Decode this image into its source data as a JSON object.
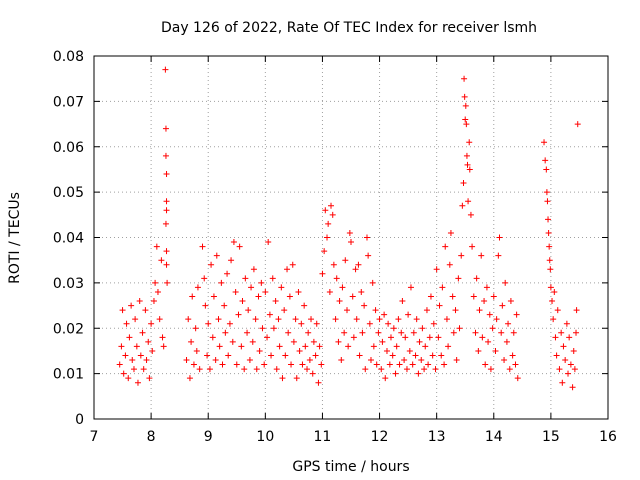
{
  "chart_data": {
    "type": "scatter",
    "title": "Day 126 of 2022, Rate Of TEC Index for receiver lsmh",
    "xlabel": "GPS time / hours",
    "ylabel": "ROTI / TECUs",
    "xlim": [
      7,
      16
    ],
    "ylim": [
      0,
      0.08
    ],
    "xticks": [
      "7",
      "8",
      "9",
      "10",
      "11",
      "12",
      "13",
      "14",
      "15",
      "16"
    ],
    "yticks": [
      "0",
      "0.01",
      "0.02",
      "0.03",
      "0.04",
      "0.05",
      "0.06",
      "0.07",
      "0.08"
    ],
    "grid": true,
    "marker": "+",
    "color": "#ff0000",
    "series": [
      {
        "points": [
          [
            7.45,
            0.012
          ],
          [
            7.48,
            0.016
          ],
          [
            7.5,
            0.024
          ],
          [
            7.52,
            0.01
          ],
          [
            7.55,
            0.014
          ],
          [
            7.57,
            0.021
          ],
          [
            7.6,
            0.009
          ],
          [
            7.62,
            0.018
          ],
          [
            7.65,
            0.025
          ],
          [
            7.67,
            0.013
          ],
          [
            7.7,
            0.011
          ],
          [
            7.72,
            0.022
          ],
          [
            7.75,
            0.016
          ],
          [
            7.77,
            0.008
          ],
          [
            7.8,
            0.026
          ],
          [
            7.82,
            0.014
          ],
          [
            7.85,
            0.019
          ],
          [
            7.87,
            0.011
          ],
          [
            7.9,
            0.024
          ],
          [
            7.92,
            0.013
          ],
          [
            7.95,
            0.017
          ],
          [
            7.97,
            0.009
          ],
          [
            8.0,
            0.021
          ],
          [
            8.02,
            0.015
          ],
          [
            8.05,
            0.026
          ],
          [
            8.07,
            0.03
          ],
          [
            8.1,
            0.038
          ],
          [
            8.12,
            0.028
          ],
          [
            8.15,
            0.022
          ],
          [
            8.18,
            0.035
          ],
          [
            8.2,
            0.018
          ],
          [
            8.22,
            0.016
          ],
          [
            8.25,
            0.077
          ],
          [
            8.26,
            0.064
          ],
          [
            8.26,
            0.058
          ],
          [
            8.27,
            0.054
          ],
          [
            8.27,
            0.048
          ],
          [
            8.27,
            0.046
          ],
          [
            8.26,
            0.043
          ],
          [
            8.27,
            0.037
          ],
          [
            8.27,
            0.034
          ],
          [
            8.28,
            0.03
          ],
          [
            8.62,
            0.013
          ],
          [
            8.65,
            0.022
          ],
          [
            8.68,
            0.009
          ],
          [
            8.7,
            0.017
          ],
          [
            8.72,
            0.027
          ],
          [
            8.75,
            0.012
          ],
          [
            8.78,
            0.02
          ],
          [
            8.8,
            0.015
          ],
          [
            8.82,
            0.029
          ],
          [
            8.85,
            0.011
          ],
          [
            8.9,
            0.038
          ],
          [
            8.93,
            0.031
          ],
          [
            8.95,
            0.025
          ],
          [
            8.98,
            0.014
          ],
          [
            9.0,
            0.021
          ],
          [
            9.03,
            0.011
          ],
          [
            9.05,
            0.034
          ],
          [
            9.08,
            0.018
          ],
          [
            9.1,
            0.027
          ],
          [
            9.13,
            0.013
          ],
          [
            9.15,
            0.036
          ],
          [
            9.18,
            0.022
          ],
          [
            9.2,
            0.016
          ],
          [
            9.23,
            0.03
          ],
          [
            9.25,
            0.012
          ],
          [
            9.28,
            0.025
          ],
          [
            9.3,
            0.019
          ],
          [
            9.33,
            0.032
          ],
          [
            9.35,
            0.014
          ],
          [
            9.38,
            0.021
          ],
          [
            9.4,
            0.035
          ],
          [
            9.43,
            0.017
          ],
          [
            9.45,
            0.039
          ],
          [
            9.48,
            0.028
          ],
          [
            9.5,
            0.012
          ],
          [
            9.53,
            0.023
          ],
          [
            9.55,
            0.038
          ],
          [
            9.58,
            0.016
          ],
          [
            9.6,
            0.026
          ],
          [
            9.63,
            0.011
          ],
          [
            9.65,
            0.031
          ],
          [
            9.68,
            0.019
          ],
          [
            9.7,
            0.024
          ],
          [
            9.73,
            0.013
          ],
          [
            9.75,
            0.029
          ],
          [
            9.78,
            0.017
          ],
          [
            9.8,
            0.033
          ],
          [
            9.83,
            0.022
          ],
          [
            9.85,
            0.011
          ],
          [
            9.88,
            0.027
          ],
          [
            9.9,
            0.015
          ],
          [
            9.93,
            0.03
          ],
          [
            9.95,
            0.02
          ],
          [
            9.98,
            0.012
          ],
          [
            10.0,
            0.028
          ],
          [
            10.03,
            0.018
          ],
          [
            10.05,
            0.039
          ],
          [
            10.08,
            0.023
          ],
          [
            10.1,
            0.014
          ],
          [
            10.13,
            0.031
          ],
          [
            10.15,
            0.02
          ],
          [
            10.18,
            0.026
          ],
          [
            10.2,
            0.011
          ],
          [
            10.23,
            0.022
          ],
          [
            10.25,
            0.016
          ],
          [
            10.28,
            0.029
          ],
          [
            10.3,
            0.009
          ],
          [
            10.33,
            0.024
          ],
          [
            10.35,
            0.014
          ],
          [
            10.38,
            0.033
          ],
          [
            10.4,
            0.019
          ],
          [
            10.43,
            0.027
          ],
          [
            10.45,
            0.012
          ],
          [
            10.48,
            0.034
          ],
          [
            10.5,
            0.017
          ],
          [
            10.53,
            0.022
          ],
          [
            10.55,
            0.009
          ],
          [
            10.58,
            0.028
          ],
          [
            10.6,
            0.015
          ],
          [
            10.63,
            0.021
          ],
          [
            10.65,
            0.012
          ],
          [
            10.68,
            0.025
          ],
          [
            10.7,
            0.016
          ],
          [
            10.73,
            0.011
          ],
          [
            10.75,
            0.019
          ],
          [
            10.78,
            0.013
          ],
          [
            10.8,
            0.022
          ],
          [
            10.83,
            0.01
          ],
          [
            10.85,
            0.017
          ],
          [
            10.88,
            0.014
          ],
          [
            10.9,
            0.021
          ],
          [
            10.93,
            0.008
          ],
          [
            10.95,
            0.016
          ],
          [
            10.98,
            0.012
          ],
          [
            11.0,
            0.032
          ],
          [
            11.03,
            0.037
          ],
          [
            11.05,
            0.046
          ],
          [
            11.08,
            0.04
          ],
          [
            11.1,
            0.043
          ],
          [
            11.13,
            0.028
          ],
          [
            11.15,
            0.047
          ],
          [
            11.18,
            0.045
          ],
          [
            11.2,
            0.034
          ],
          [
            11.23,
            0.022
          ],
          [
            11.25,
            0.031
          ],
          [
            11.28,
            0.017
          ],
          [
            11.3,
            0.026
          ],
          [
            11.33,
            0.013
          ],
          [
            11.35,
            0.029
          ],
          [
            11.38,
            0.019
          ],
          [
            11.4,
            0.035
          ],
          [
            11.43,
            0.024
          ],
          [
            11.45,
            0.016
          ],
          [
            11.48,
            0.041
          ],
          [
            11.5,
            0.039
          ],
          [
            11.53,
            0.027
          ],
          [
            11.55,
            0.018
          ],
          [
            11.58,
            0.033
          ],
          [
            11.6,
            0.022
          ],
          [
            11.63,
            0.034
          ],
          [
            11.65,
            0.014
          ],
          [
            11.68,
            0.028
          ],
          [
            11.7,
            0.019
          ],
          [
            11.73,
            0.025
          ],
          [
            11.75,
            0.011
          ],
          [
            11.78,
            0.04
          ],
          [
            11.8,
            0.036
          ],
          [
            11.83,
            0.021
          ],
          [
            11.85,
            0.013
          ],
          [
            11.88,
            0.03
          ],
          [
            11.9,
            0.016
          ],
          [
            11.93,
            0.024
          ],
          [
            11.95,
            0.012
          ],
          [
            11.98,
            0.019
          ],
          [
            12.0,
            0.022
          ],
          [
            12.03,
            0.011
          ],
          [
            12.05,
            0.017
          ],
          [
            12.08,
            0.023
          ],
          [
            12.1,
            0.009
          ],
          [
            12.13,
            0.015
          ],
          [
            12.15,
            0.021
          ],
          [
            12.18,
            0.012
          ],
          [
            12.2,
            0.018
          ],
          [
            12.23,
            0.014
          ],
          [
            12.25,
            0.02
          ],
          [
            12.28,
            0.01
          ],
          [
            12.3,
            0.016
          ],
          [
            12.33,
            0.022
          ],
          [
            12.35,
            0.012
          ],
          [
            12.38,
            0.019
          ],
          [
            12.4,
            0.026
          ],
          [
            12.43,
            0.013
          ],
          [
            12.45,
            0.018
          ],
          [
            12.48,
            0.011
          ],
          [
            12.5,
            0.023
          ],
          [
            12.53,
            0.015
          ],
          [
            12.55,
            0.029
          ],
          [
            12.58,
            0.012
          ],
          [
            12.6,
            0.019
          ],
          [
            12.63,
            0.014
          ],
          [
            12.65,
            0.022
          ],
          [
            12.68,
            0.01
          ],
          [
            12.7,
            0.017
          ],
          [
            12.73,
            0.013
          ],
          [
            12.75,
            0.02
          ],
          [
            12.78,
            0.011
          ],
          [
            12.8,
            0.016
          ],
          [
            12.83,
            0.024
          ],
          [
            12.85,
            0.012
          ],
          [
            12.88,
            0.018
          ],
          [
            12.9,
            0.027
          ],
          [
            12.93,
            0.014
          ],
          [
            12.95,
            0.021
          ],
          [
            12.98,
            0.011
          ],
          [
            13.0,
            0.033
          ],
          [
            13.03,
            0.018
          ],
          [
            13.05,
            0.025
          ],
          [
            13.08,
            0.014
          ],
          [
            13.1,
            0.029
          ],
          [
            13.13,
            0.012
          ],
          [
            13.15,
            0.038
          ],
          [
            13.18,
            0.022
          ],
          [
            13.2,
            0.016
          ],
          [
            13.23,
            0.034
          ],
          [
            13.25,
            0.041
          ],
          [
            13.28,
            0.027
          ],
          [
            13.3,
            0.019
          ],
          [
            13.33,
            0.024
          ],
          [
            13.35,
            0.013
          ],
          [
            13.38,
            0.031
          ],
          [
            13.4,
            0.02
          ],
          [
            13.43,
            0.036
          ],
          [
            13.45,
            0.047
          ],
          [
            13.47,
            0.052
          ],
          [
            13.48,
            0.075
          ],
          [
            13.49,
            0.071
          ],
          [
            13.5,
            0.066
          ],
          [
            13.51,
            0.069
          ],
          [
            13.52,
            0.065
          ],
          [
            13.53,
            0.058
          ],
          [
            13.54,
            0.056
          ],
          [
            13.55,
            0.048
          ],
          [
            13.57,
            0.061
          ],
          [
            13.58,
            0.055
          ],
          [
            13.6,
            0.045
          ],
          [
            13.62,
            0.038
          ],
          [
            13.65,
            0.027
          ],
          [
            13.68,
            0.019
          ],
          [
            13.7,
            0.031
          ],
          [
            13.73,
            0.015
          ],
          [
            13.75,
            0.024
          ],
          [
            13.78,
            0.036
          ],
          [
            13.8,
            0.018
          ],
          [
            13.83,
            0.026
          ],
          [
            13.85,
            0.012
          ],
          [
            13.88,
            0.029
          ],
          [
            13.9,
            0.017
          ],
          [
            13.93,
            0.023
          ],
          [
            13.95,
            0.011
          ],
          [
            13.98,
            0.02
          ],
          [
            14.0,
            0.027
          ],
          [
            14.03,
            0.015
          ],
          [
            14.05,
            0.022
          ],
          [
            14.08,
            0.036
          ],
          [
            14.1,
            0.04
          ],
          [
            14.13,
            0.019
          ],
          [
            14.15,
            0.025
          ],
          [
            14.18,
            0.013
          ],
          [
            14.2,
            0.03
          ],
          [
            14.23,
            0.017
          ],
          [
            14.25,
            0.021
          ],
          [
            14.28,
            0.011
          ],
          [
            14.3,
            0.026
          ],
          [
            14.33,
            0.014
          ],
          [
            14.35,
            0.019
          ],
          [
            14.38,
            0.012
          ],
          [
            14.4,
            0.023
          ],
          [
            14.42,
            0.009
          ],
          [
            14.88,
            0.061
          ],
          [
            14.9,
            0.057
          ],
          [
            14.92,
            0.055
          ],
          [
            14.93,
            0.05
          ],
          [
            14.94,
            0.048
          ],
          [
            14.95,
            0.044
          ],
          [
            14.96,
            0.041
          ],
          [
            14.97,
            0.038
          ],
          [
            14.98,
            0.035
          ],
          [
            14.99,
            0.033
          ],
          [
            15.0,
            0.029
          ],
          [
            15.02,
            0.026
          ],
          [
            15.04,
            0.022
          ],
          [
            15.06,
            0.028
          ],
          [
            15.08,
            0.018
          ],
          [
            15.1,
            0.014
          ],
          [
            15.12,
            0.024
          ],
          [
            15.15,
            0.011
          ],
          [
            15.18,
            0.019
          ],
          [
            15.2,
            0.008
          ],
          [
            15.22,
            0.016
          ],
          [
            15.25,
            0.013
          ],
          [
            15.28,
            0.021
          ],
          [
            15.3,
            0.01
          ],
          [
            15.32,
            0.018
          ],
          [
            15.35,
            0.012
          ],
          [
            15.38,
            0.007
          ],
          [
            15.4,
            0.015
          ],
          [
            15.42,
            0.011
          ],
          [
            15.44,
            0.019
          ],
          [
            15.45,
            0.024
          ],
          [
            15.47,
            0.065
          ]
        ]
      }
    ]
  }
}
